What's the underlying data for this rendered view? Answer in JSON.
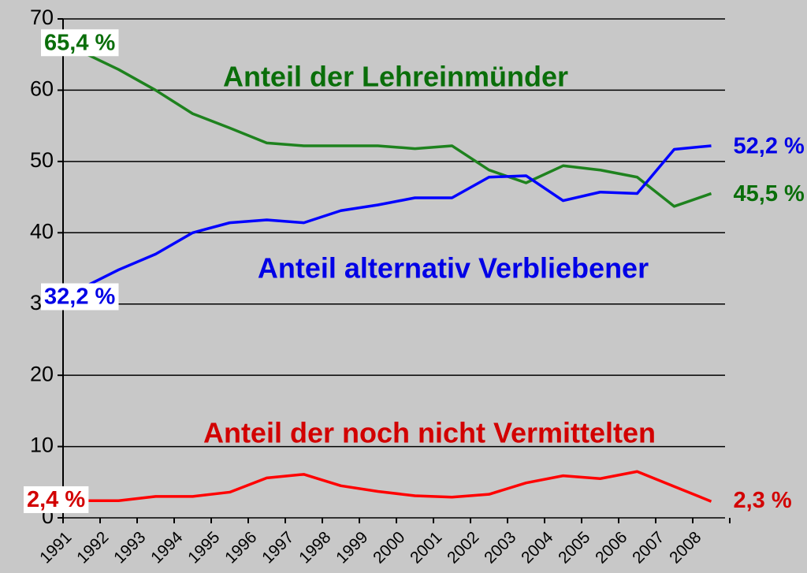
{
  "chart_data": {
    "type": "line",
    "categories": [
      "1991",
      "1992",
      "1993",
      "1994",
      "1995",
      "1996",
      "1997",
      "1998",
      "1999",
      "2000",
      "2001",
      "2002",
      "2003",
      "2004",
      "2005",
      "2006",
      "2007",
      "2008"
    ],
    "series": [
      {
        "name": "Anteil der Lehreinmünder",
        "color": "#1e821e",
        "label_color": "#0a6e0a",
        "values": [
          65.4,
          62.9,
          60.0,
          56.7,
          54.7,
          52.6,
          52.2,
          52.2,
          52.2,
          51.8,
          52.2,
          48.8,
          47.0,
          49.4,
          48.8,
          47.8,
          43.7,
          45.5
        ],
        "value_labels": [
          "65,4 %",
          null,
          null,
          null,
          null,
          null,
          null,
          null,
          null,
          null,
          null,
          null,
          null,
          null,
          null,
          null,
          null,
          "45,5 %"
        ]
      },
      {
        "name": "Anteil alternativ Verbliebener",
        "color": "#0000ff",
        "label_color": "#0000e6",
        "values": [
          32.2,
          34.8,
          37.0,
          40.0,
          41.4,
          41.8,
          41.4,
          43.1,
          43.9,
          44.9,
          44.9,
          47.8,
          48.0,
          44.5,
          45.7,
          45.5,
          51.7,
          52.2
        ],
        "value_labels": [
          "32,2 %",
          null,
          null,
          null,
          null,
          null,
          null,
          null,
          null,
          null,
          null,
          null,
          null,
          null,
          null,
          null,
          null,
          "52,2 %"
        ]
      },
      {
        "name": "Anteil der noch nicht Vermittelten",
        "color": "#ff0000",
        "label_color": "#d20000",
        "values": [
          2.4,
          2.4,
          3.0,
          3.0,
          3.6,
          5.6,
          6.1,
          4.5,
          3.7,
          3.1,
          2.9,
          3.3,
          4.9,
          5.9,
          5.5,
          6.5,
          4.4,
          2.3
        ],
        "value_labels": [
          "2,4 %",
          null,
          null,
          null,
          null,
          null,
          null,
          null,
          null,
          null,
          null,
          null,
          null,
          null,
          null,
          null,
          null,
          "2,3 %"
        ]
      }
    ],
    "ylim": [
      0,
      70
    ],
    "yticks": [
      0,
      10,
      20,
      30,
      40,
      50,
      60,
      70
    ],
    "grid": true
  }
}
